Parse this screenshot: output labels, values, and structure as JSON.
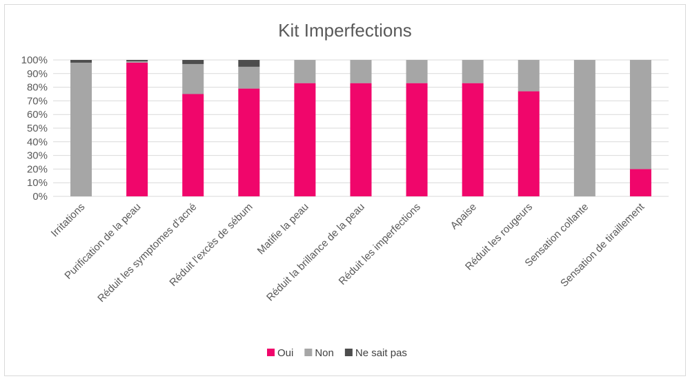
{
  "chart_data": {
    "type": "bar",
    "stacked": true,
    "percent": true,
    "title": "Kit Imperfections",
    "categories": [
      "Irritations",
      "Purification de la peau",
      "Réduit les symptomes d'acné",
      "Réduit l'excès de sébum",
      "Matifie la peau",
      "Réduit la brillance de la peau",
      "Réduit les imperfections",
      "Apaise",
      "Réduit les rougeurs",
      "Sensation collante",
      "Sensation de tiraillement"
    ],
    "series": [
      {
        "name": "Oui",
        "color": "#f0066b",
        "values": [
          0,
          98,
          75,
          79,
          83,
          83,
          83,
          83,
          77,
          0,
          20
        ]
      },
      {
        "name": "Non",
        "color": "#a6a6a6",
        "values": [
          98,
          1,
          22,
          16,
          17,
          17,
          17,
          17,
          23,
          100,
          80
        ]
      },
      {
        "name": "Ne sait pas",
        "color": "#4d4d4d",
        "values": [
          2,
          1,
          3,
          5,
          0,
          0,
          0,
          0,
          0,
          0,
          0
        ]
      }
    ],
    "yticks": [
      "0%",
      "10%",
      "20%",
      "30%",
      "40%",
      "50%",
      "60%",
      "70%",
      "80%",
      "90%",
      "100%"
    ],
    "ylim": [
      0,
      100
    ],
    "grid": true,
    "legend": "bottom"
  }
}
